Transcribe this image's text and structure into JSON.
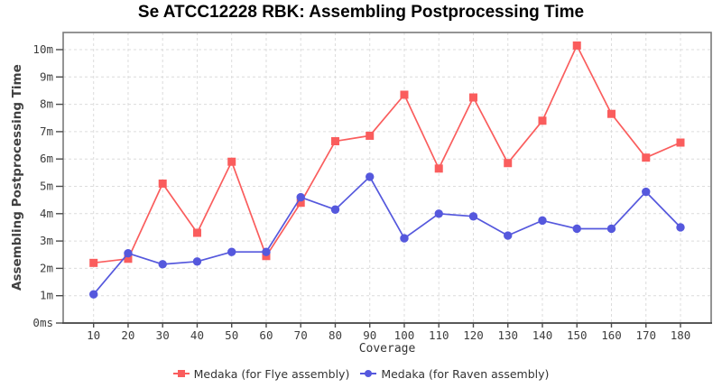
{
  "title": "Se ATCC12228 RBK: Assembling Postprocessing Time",
  "chart_data": {
    "type": "line",
    "x": [
      10,
      20,
      30,
      40,
      50,
      60,
      70,
      80,
      90,
      100,
      110,
      120,
      130,
      140,
      150,
      160,
      170,
      180
    ],
    "series": [
      {
        "name": "Medaka (for Flye assembly)",
        "color": "#fa5d5d",
        "marker": "square",
        "values": [
          2.2,
          2.35,
          5.1,
          3.3,
          5.9,
          2.45,
          4.4,
          6.65,
          6.85,
          8.35,
          5.65,
          8.25,
          5.85,
          7.4,
          10.15,
          7.65,
          6.05,
          6.6
        ]
      },
      {
        "name": "Medaka (for Raven assembly)",
        "color": "#5558dd",
        "marker": "circle",
        "values": [
          1.05,
          2.55,
          2.15,
          2.25,
          2.6,
          2.6,
          4.6,
          4.15,
          5.35,
          3.1,
          4.0,
          3.9,
          3.2,
          3.75,
          3.45,
          3.45,
          4.8,
          3.5
        ]
      }
    ],
    "title": "Se ATCC12228 RBK: Assembling Postprocessing Time",
    "xlabel": "Coverage",
    "ylabel": "Assembling Postprocessing Time",
    "ylim": [
      0,
      10.63
    ],
    "yticks": [
      {
        "v": 0,
        "label": "0ms"
      },
      {
        "v": 1,
        "label": "1m"
      },
      {
        "v": 2,
        "label": "2m"
      },
      {
        "v": 3,
        "label": "3m"
      },
      {
        "v": 4,
        "label": "4m"
      },
      {
        "v": 5,
        "label": "5m"
      },
      {
        "v": 6,
        "label": "6m"
      },
      {
        "v": 7,
        "label": "7m"
      },
      {
        "v": 8,
        "label": "8m"
      },
      {
        "v": 9,
        "label": "9m"
      },
      {
        "v": 10,
        "label": "10m"
      }
    ],
    "xtick_labels": [
      "10",
      "20",
      "30",
      "40",
      "50",
      "60",
      "70",
      "80",
      "90",
      "100",
      "110",
      "120",
      "130",
      "140",
      "150",
      "160",
      "170",
      "180"
    ],
    "grid": "dashed",
    "legend_position": "bottom"
  },
  "colors": {
    "background": "#ffffff",
    "plot_background": "#ffffff",
    "grid": "#dcdcdc",
    "frame": "#7a7a7a",
    "axis_line": "#4b4b4b",
    "tick_text": "#3d3d3d",
    "series_red": "#fa5d5d",
    "series_blue": "#5558dd"
  },
  "legend": {
    "items": [
      {
        "label": "Medaka (for Flye assembly)",
        "marker": "square",
        "color": "#fa5d5d"
      },
      {
        "label": "Medaka (for Raven assembly)",
        "marker": "circle",
        "color": "#5558dd"
      }
    ]
  }
}
